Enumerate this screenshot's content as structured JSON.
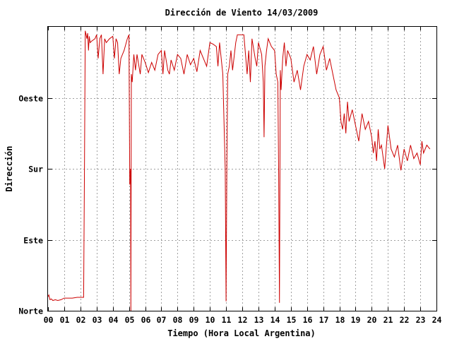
{
  "chart_data": {
    "type": "line",
    "title": "Dirección de Viento 14/03/2009",
    "xlabel": "Tiempo (Hora Local Argentina)",
    "ylabel": "Dirección",
    "x_ticks": [
      "00",
      "01",
      "02",
      "03",
      "04",
      "05",
      "06",
      "07",
      "08",
      "09",
      "10",
      "11",
      "12",
      "13",
      "14",
      "15",
      "16",
      "17",
      "18",
      "19",
      "20",
      "21",
      "22",
      "23",
      "24"
    ],
    "y_ticks": [
      {
        "value": 0,
        "label": "Norte"
      },
      {
        "value": 90,
        "label": "Este"
      },
      {
        "value": 180,
        "label": "Sur"
      },
      {
        "value": 270,
        "label": "Oeste"
      }
    ],
    "xlim": [
      0,
      24
    ],
    "ylim": [
      0,
      360
    ],
    "grid": true,
    "series": [
      {
        "color": "#cc0000",
        "points": [
          [
            0.0,
            18
          ],
          [
            0.05,
            20
          ],
          [
            0.12,
            14
          ],
          [
            0.2,
            15
          ],
          [
            0.3,
            13
          ],
          [
            0.45,
            14
          ],
          [
            0.6,
            13
          ],
          [
            0.8,
            14
          ],
          [
            1.0,
            16
          ],
          [
            1.2,
            16
          ],
          [
            1.5,
            16
          ],
          [
            1.8,
            17
          ],
          [
            2.2,
            17
          ],
          [
            2.25,
            180
          ],
          [
            2.3,
            355
          ],
          [
            2.35,
            350
          ],
          [
            2.4,
            345
          ],
          [
            2.45,
            352
          ],
          [
            2.5,
            330
          ],
          [
            2.55,
            348
          ],
          [
            2.6,
            340
          ],
          [
            2.7,
            342
          ],
          [
            2.9,
            345
          ],
          [
            3.0,
            350
          ],
          [
            3.1,
            320
          ],
          [
            3.2,
            345
          ],
          [
            3.3,
            350
          ],
          [
            3.4,
            300
          ],
          [
            3.5,
            345
          ],
          [
            3.6,
            340
          ],
          [
            3.8,
            345
          ],
          [
            4.0,
            348
          ],
          [
            4.1,
            320
          ],
          [
            4.2,
            345
          ],
          [
            4.3,
            340
          ],
          [
            4.4,
            300
          ],
          [
            4.5,
            320
          ],
          [
            4.7,
            330
          ],
          [
            4.9,
            345
          ],
          [
            5.0,
            350
          ],
          [
            5.05,
            160
          ],
          [
            5.1,
            180
          ],
          [
            5.12,
            0
          ],
          [
            5.15,
            300
          ],
          [
            5.2,
            290
          ],
          [
            5.3,
            325
          ],
          [
            5.4,
            305
          ],
          [
            5.5,
            325
          ],
          [
            5.7,
            300
          ],
          [
            5.8,
            325
          ],
          [
            6.0,
            315
          ],
          [
            6.2,
            302
          ],
          [
            6.4,
            315
          ],
          [
            6.6,
            305
          ],
          [
            6.8,
            325
          ],
          [
            7.0,
            330
          ],
          [
            7.1,
            300
          ],
          [
            7.2,
            330
          ],
          [
            7.4,
            305
          ],
          [
            7.5,
            300
          ],
          [
            7.6,
            318
          ],
          [
            7.8,
            305
          ],
          [
            8.0,
            325
          ],
          [
            8.2,
            320
          ],
          [
            8.4,
            300
          ],
          [
            8.6,
            325
          ],
          [
            8.8,
            312
          ],
          [
            9.0,
            320
          ],
          [
            9.2,
            303
          ],
          [
            9.4,
            330
          ],
          [
            9.6,
            320
          ],
          [
            9.8,
            310
          ],
          [
            10.0,
            340
          ],
          [
            10.2,
            338
          ],
          [
            10.4,
            335
          ],
          [
            10.5,
            310
          ],
          [
            10.6,
            340
          ],
          [
            10.8,
            300
          ],
          [
            10.85,
            260
          ],
          [
            10.95,
            180
          ],
          [
            11.0,
            12
          ],
          [
            11.05,
            180
          ],
          [
            11.1,
            300
          ],
          [
            11.2,
            310
          ],
          [
            11.3,
            330
          ],
          [
            11.4,
            305
          ],
          [
            11.6,
            340
          ],
          [
            11.7,
            350
          ],
          [
            11.9,
            350
          ],
          [
            12.1,
            350
          ],
          [
            12.2,
            325
          ],
          [
            12.3,
            300
          ],
          [
            12.4,
            330
          ],
          [
            12.5,
            290
          ],
          [
            12.6,
            345
          ],
          [
            12.8,
            320
          ],
          [
            12.9,
            310
          ],
          [
            13.0,
            340
          ],
          [
            13.2,
            325
          ],
          [
            13.3,
            290
          ],
          [
            13.35,
            220
          ],
          [
            13.4,
            310
          ],
          [
            13.5,
            330
          ],
          [
            13.6,
            345
          ],
          [
            13.8,
            335
          ],
          [
            14.0,
            330
          ],
          [
            14.1,
            300
          ],
          [
            14.2,
            290
          ],
          [
            14.25,
            170
          ],
          [
            14.3,
            10
          ],
          [
            14.35,
            305
          ],
          [
            14.4,
            280
          ],
          [
            14.5,
            320
          ],
          [
            14.6,
            340
          ],
          [
            14.7,
            310
          ],
          [
            14.8,
            330
          ],
          [
            15.0,
            320
          ],
          [
            15.2,
            290
          ],
          [
            15.4,
            305
          ],
          [
            15.6,
            280
          ],
          [
            15.8,
            310
          ],
          [
            16.0,
            325
          ],
          [
            16.2,
            318
          ],
          [
            16.4,
            335
          ],
          [
            16.6,
            300
          ],
          [
            16.8,
            325
          ],
          [
            17.0,
            335
          ],
          [
            17.2,
            305
          ],
          [
            17.4,
            320
          ],
          [
            17.6,
            300
          ],
          [
            17.8,
            280
          ],
          [
            18.0,
            270
          ],
          [
            18.1,
            240
          ],
          [
            18.2,
            230
          ],
          [
            18.3,
            250
          ],
          [
            18.4,
            225
          ],
          [
            18.5,
            265
          ],
          [
            18.6,
            240
          ],
          [
            18.8,
            255
          ],
          [
            19.0,
            235
          ],
          [
            19.2,
            215
          ],
          [
            19.4,
            250
          ],
          [
            19.6,
            230
          ],
          [
            19.8,
            240
          ],
          [
            20.0,
            220
          ],
          [
            20.1,
            200
          ],
          [
            20.2,
            215
          ],
          [
            20.3,
            190
          ],
          [
            20.4,
            230
          ],
          [
            20.5,
            205
          ],
          [
            20.6,
            210
          ],
          [
            20.8,
            180
          ],
          [
            21.0,
            235
          ],
          [
            21.2,
            205
          ],
          [
            21.4,
            195
          ],
          [
            21.6,
            210
          ],
          [
            21.8,
            178
          ],
          [
            22.0,
            205
          ],
          [
            22.2,
            190
          ],
          [
            22.4,
            210
          ],
          [
            22.6,
            193
          ],
          [
            22.8,
            200
          ],
          [
            23.0,
            185
          ],
          [
            23.1,
            215
          ],
          [
            23.2,
            200
          ],
          [
            23.4,
            210
          ],
          [
            23.6,
            205
          ]
        ]
      }
    ]
  }
}
